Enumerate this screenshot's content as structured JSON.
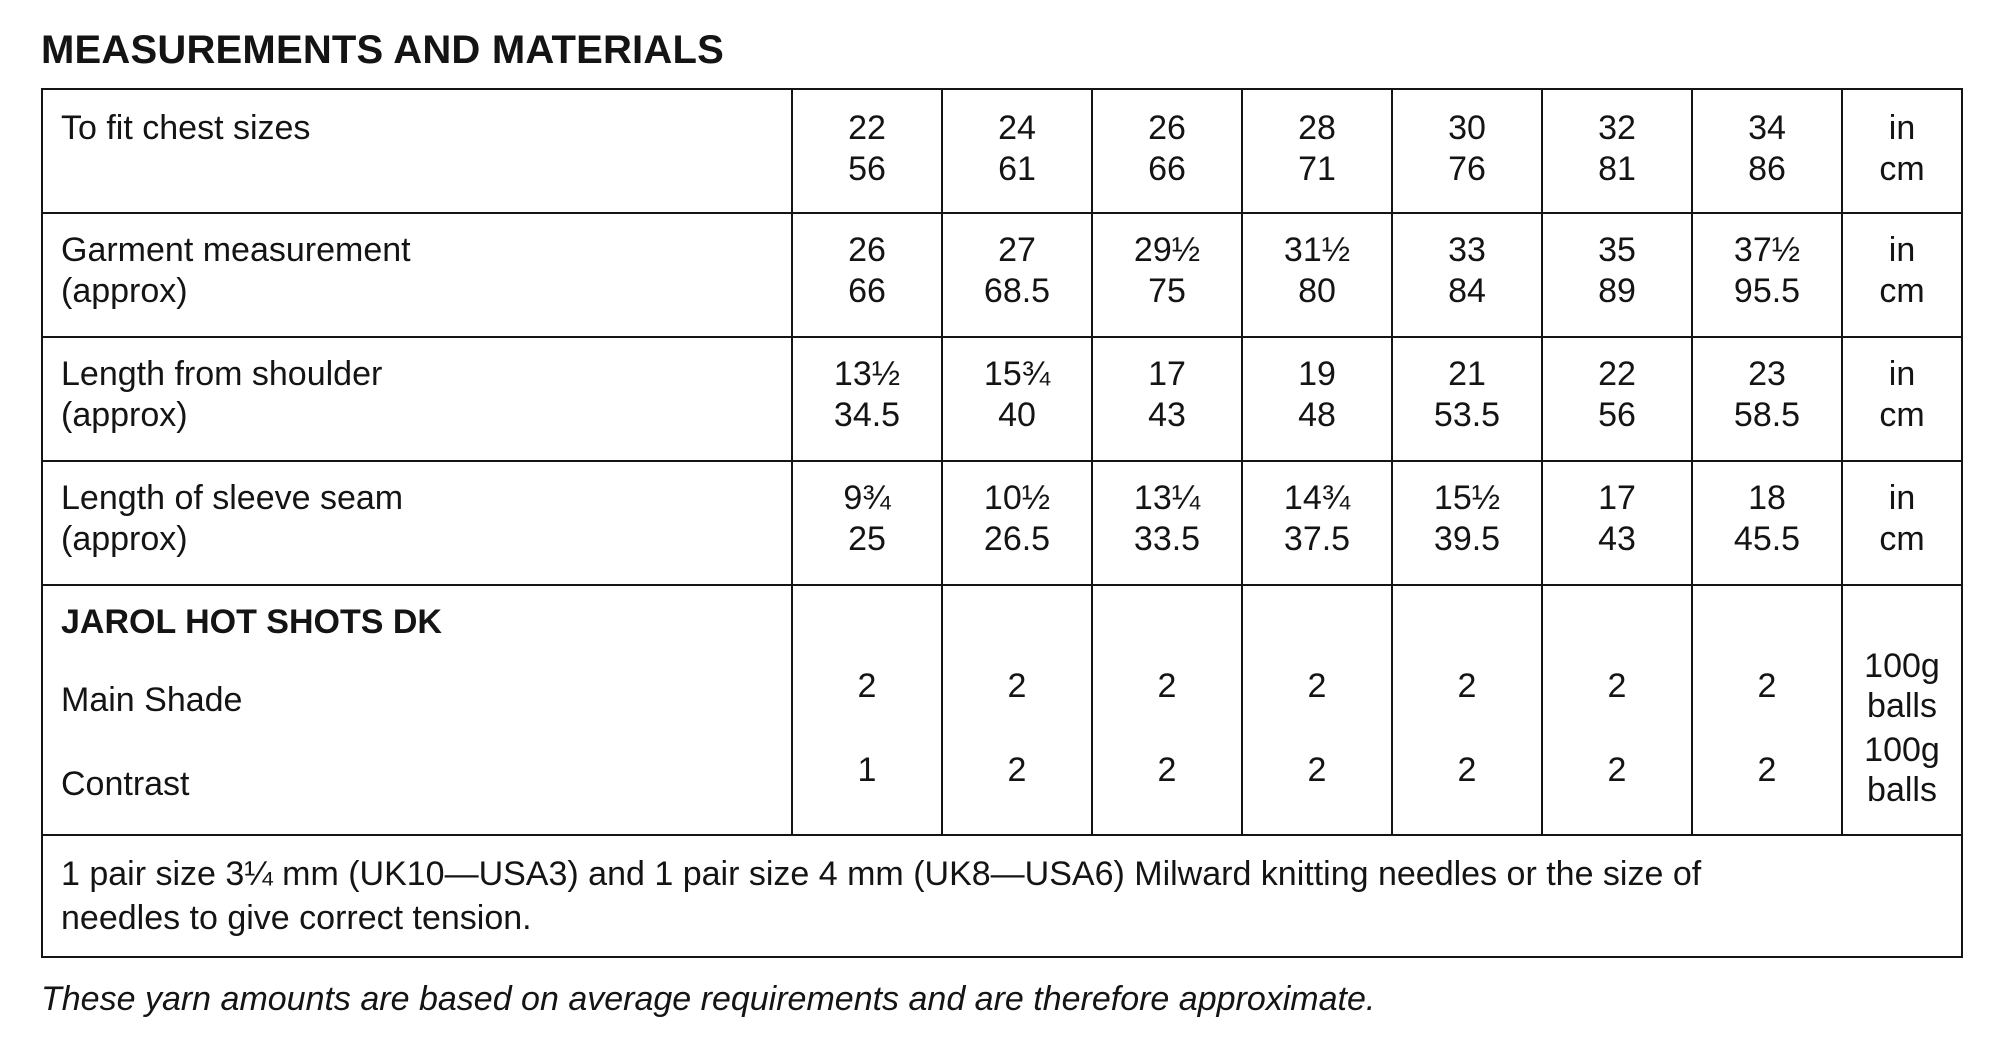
{
  "title": "MEASUREMENTS AND MATERIALS",
  "rows": [
    {
      "label": [
        "To fit chest sizes"
      ],
      "values": [
        [
          "22",
          "56"
        ],
        [
          "24",
          "61"
        ],
        [
          "26",
          "66"
        ],
        [
          "28",
          "71"
        ],
        [
          "30",
          "76"
        ],
        [
          "32",
          "81"
        ],
        [
          "34",
          "86"
        ]
      ],
      "unit": [
        "in",
        "cm"
      ]
    },
    {
      "label": [
        "Garment measurement",
        "(approx)"
      ],
      "values": [
        [
          "26",
          "66"
        ],
        [
          "27",
          "68.5"
        ],
        [
          "29½",
          "75"
        ],
        [
          "31½",
          "80"
        ],
        [
          "33",
          "84"
        ],
        [
          "35",
          "89"
        ],
        [
          "37½",
          "95.5"
        ]
      ],
      "unit": [
        "in",
        "cm"
      ]
    },
    {
      "label": [
        "Length from shoulder",
        "(approx)"
      ],
      "values": [
        [
          "13½",
          "34.5"
        ],
        [
          "15¾",
          "40"
        ],
        [
          "17",
          "43"
        ],
        [
          "19",
          "48"
        ],
        [
          "21",
          "53.5"
        ],
        [
          "22",
          "56"
        ],
        [
          "23",
          "58.5"
        ]
      ],
      "unit": [
        "in",
        "cm"
      ]
    },
    {
      "label": [
        "Length of sleeve seam",
        "(approx)"
      ],
      "values": [
        [
          "9¾",
          "25"
        ],
        [
          "10½",
          "26.5"
        ],
        [
          "13¼",
          "33.5"
        ],
        [
          "14¾",
          "37.5"
        ],
        [
          "15½",
          "39.5"
        ],
        [
          "17",
          "43"
        ],
        [
          "18",
          "45.5"
        ]
      ],
      "unit": [
        "in",
        "cm"
      ]
    }
  ],
  "yarn": {
    "title": "JAROL HOT SHOTS DK",
    "main_shade": {
      "label": "Main Shade",
      "values": [
        "2",
        "2",
        "2",
        "2",
        "2",
        "2",
        "2"
      ],
      "unit": [
        "100g",
        "balls"
      ]
    },
    "contrast": {
      "label": "Contrast",
      "values": [
        "1",
        "2",
        "2",
        "2",
        "2",
        "2",
        "2"
      ],
      "unit": [
        "100g",
        "balls"
      ]
    }
  },
  "needles": [
    "1 pair size 3¼ mm (UK10—USA3) and 1 pair size 4 mm (UK8—USA6) Milward knitting needles or the size of",
    "needles to give correct tension."
  ],
  "footnote": "These yarn amounts are based on average requirements and are therefore approximate."
}
